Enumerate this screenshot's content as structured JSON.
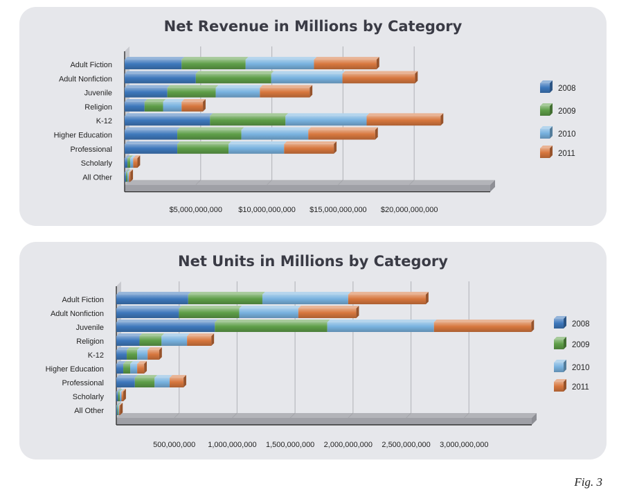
{
  "colors": {
    "2008": "#3e78bc",
    "2009": "#5e9e48",
    "2010": "#78b2df",
    "2011": "#d7773e"
  },
  "figure_label": "Fig. 3",
  "chart_data": [
    {
      "type": "bar",
      "orientation": "horizontal",
      "stacked": true,
      "title": "Net Revenue in Millions by Category",
      "categories": [
        "Adult Fiction",
        "Adult Nonfiction",
        "Juvenile",
        "Religion",
        "K-12",
        "Higher Education",
        "Professional",
        "Scholarly",
        "All Other"
      ],
      "series": [
        {
          "name": "2008",
          "values": [
            4000000000,
            5000000000,
            3000000000,
            1400000000,
            6000000000,
            3700000000,
            3700000000,
            200000000,
            100000000
          ]
        },
        {
          "name": "2009",
          "values": [
            4500000000,
            5300000000,
            3400000000,
            1300000000,
            5300000000,
            4500000000,
            3600000000,
            200000000,
            100000000
          ]
        },
        {
          "name": "2010",
          "values": [
            4800000000,
            5000000000,
            3100000000,
            1300000000,
            5700000000,
            4700000000,
            3900000000,
            200000000,
            100000000
          ]
        },
        {
          "name": "2011",
          "values": [
            4400000000,
            5100000000,
            3500000000,
            1500000000,
            5200000000,
            4700000000,
            3500000000,
            300000000,
            100000000
          ]
        }
      ],
      "xticks": [
        5000000000,
        10000000000,
        15000000000,
        20000000000
      ],
      "xtick_labels": [
        "$5,000,000,000",
        "$10,000,000,000",
        "$15,000,000,000",
        "$20,000,000,000"
      ],
      "xlim": [
        0,
        25000000000
      ],
      "grid": true,
      "legend": "right"
    },
    {
      "type": "bar",
      "orientation": "horizontal",
      "stacked": true,
      "title": "Net Units in Millions by Category",
      "categories": [
        "Adult Fiction",
        "Adult Nonfiction",
        "Juvenile",
        "Religion",
        "K-12",
        "Higher Education",
        "Professional",
        "Scholarly",
        "All Other"
      ],
      "series": [
        {
          "name": "2008",
          "values": [
            620000000,
            540000000,
            850000000,
            200000000,
            90000000,
            60000000,
            160000000,
            15000000,
            8000000
          ]
        },
        {
          "name": "2009",
          "values": [
            640000000,
            520000000,
            970000000,
            190000000,
            90000000,
            60000000,
            170000000,
            15000000,
            8000000
          ]
        },
        {
          "name": "2010",
          "values": [
            740000000,
            510000000,
            920000000,
            220000000,
            90000000,
            60000000,
            130000000,
            15000000,
            8000000
          ]
        },
        {
          "name": "2011",
          "values": [
            670000000,
            500000000,
            840000000,
            210000000,
            100000000,
            60000000,
            120000000,
            15000000,
            8000000
          ]
        }
      ],
      "xticks": [
        500000000,
        1000000000,
        1500000000,
        2000000000,
        2500000000,
        3000000000
      ],
      "xtick_labels": [
        "500,000,000",
        "1,000,000,000",
        "1,500,000,000",
        "2,000,000,000",
        "2,500,000,000",
        "3,000,000,000"
      ],
      "xlim": [
        0,
        3500000000
      ],
      "grid": true,
      "legend": "right"
    }
  ]
}
